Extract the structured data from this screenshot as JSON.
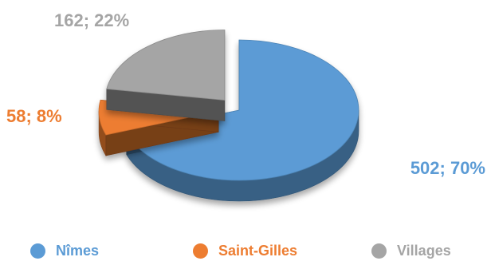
{
  "chart_data": {
    "type": "pie",
    "style": "3d-exploded",
    "categories": [
      "Nîmes",
      "Saint-Gilles",
      "Villages"
    ],
    "values": [
      502,
      58,
      162
    ],
    "percents": [
      70,
      8,
      22
    ],
    "data_labels": [
      "502; 70%",
      "58; 8%",
      "162; 22%"
    ],
    "colors": [
      "#5b9bd5",
      "#ed7d31",
      "#a5a5a5"
    ],
    "label_colors": [
      "#5b9bd5",
      "#ed7d31",
      "#a5a5a5"
    ],
    "legend_position": "bottom",
    "title": ""
  },
  "legend": {
    "items": [
      {
        "label": "Nîmes"
      },
      {
        "label": "Saint-Gilles"
      },
      {
        "label": "Villages"
      }
    ]
  }
}
